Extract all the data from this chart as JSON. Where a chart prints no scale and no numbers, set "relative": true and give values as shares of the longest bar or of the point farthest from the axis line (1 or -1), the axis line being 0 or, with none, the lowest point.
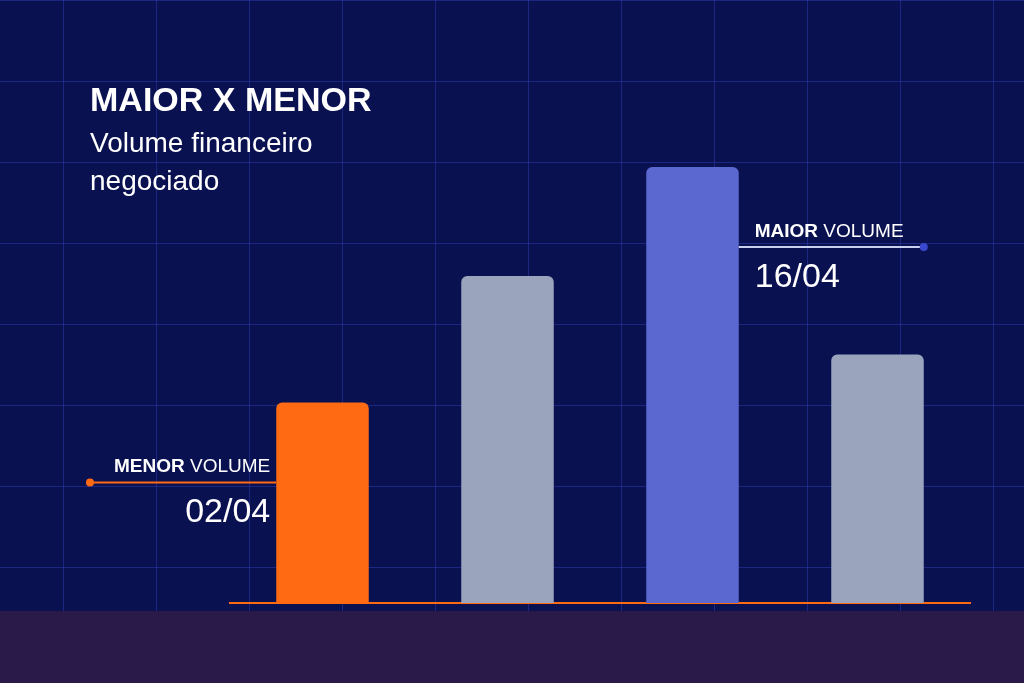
{
  "chart_data": {
    "type": "bar",
    "title": "MAIOR X MENOR",
    "subtitle": "Volume financeiro negociado",
    "relative": true,
    "categories": [
      null,
      null,
      null,
      null
    ],
    "values": [
      0.46,
      0.75,
      1,
      0.57
    ],
    "colors": [
      "#ff6a13",
      "#9aa4bd",
      "#5a68d0",
      "#9aa4bd"
    ],
    "annotations": [
      "MENOR VOLUME 02/04",
      "MAIOR VOLUME 16/04"
    ]
  }
}
